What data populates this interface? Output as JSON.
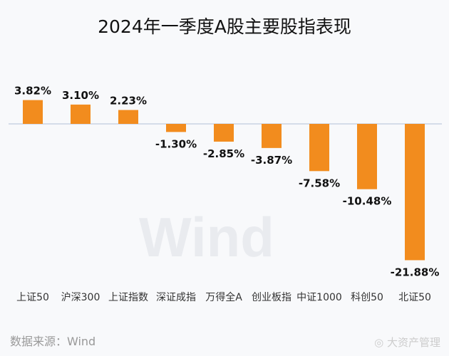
{
  "chart_data": {
    "type": "bar",
    "title": "2024年一季度A股主要股指表现",
    "categories": [
      "上证50",
      "沪深300",
      "上证指数",
      "深证成指",
      "万得全A",
      "创业板指",
      "中证1000",
      "科创50",
      "北证50"
    ],
    "values": [
      3.82,
      3.1,
      2.23,
      -1.3,
      -2.85,
      -3.87,
      -7.58,
      -10.48,
      -21.88
    ],
    "data_labels": [
      "3.82%",
      "3.10%",
      "2.23%",
      "-1.30%",
      "-2.85%",
      "-3.87%",
      "-7.58%",
      "-10.48%",
      "-21.88%"
    ],
    "xlabel": "",
    "ylabel": "",
    "grid": false,
    "legend": "none",
    "bar_color": "#f28c1e",
    "zero_line_color": "#c9d2e3"
  },
  "source": "数据来源：Wind",
  "watermark_bg": "Wind",
  "watermark_corner": "大资产管理"
}
